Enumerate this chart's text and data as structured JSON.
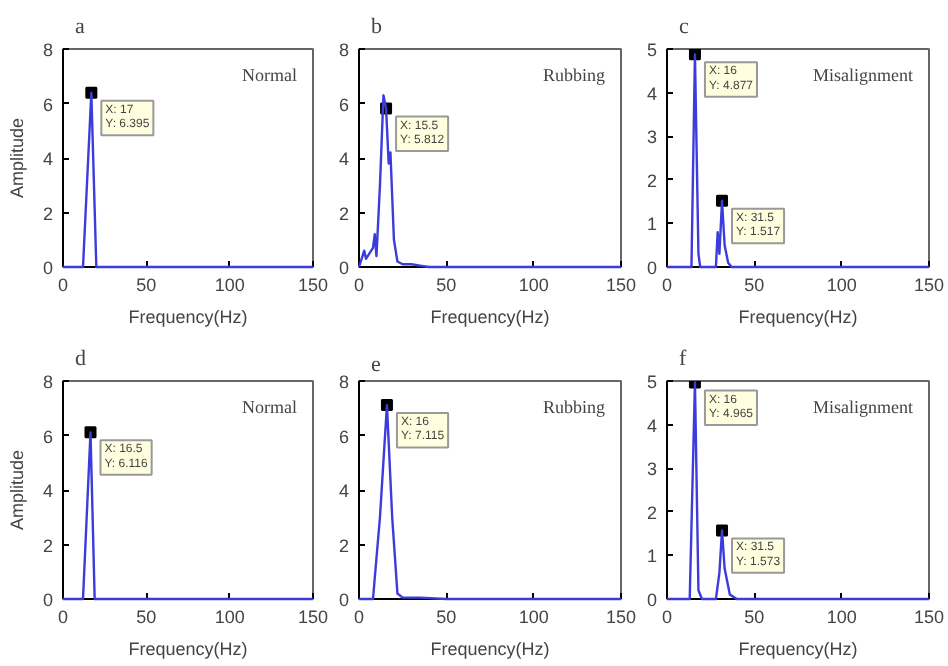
{
  "chart_data": [
    {
      "type": "line",
      "title": "a",
      "xlabel": "Frequency(Hz)",
      "ylabel": "Amplitude",
      "xlim": [
        0,
        150
      ],
      "xticks": [
        0,
        50,
        100,
        150
      ],
      "ylim": [
        0,
        8
      ],
      "yticks": [
        0,
        2,
        4,
        6,
        8
      ],
      "grid": false,
      "series": [
        {
          "color": "#3c3cdc",
          "x": [
            0,
            12,
            17,
            20,
            150
          ],
          "values": [
            0,
            0,
            6.395,
            0,
            0
          ]
        }
      ],
      "annotations": [
        "Normal",
        {
          "text": "X: 17\nY: 6.395",
          "x": 17,
          "y": 6.395
        }
      ]
    },
    {
      "type": "line",
      "title": "b",
      "xlabel": "Frequency(Hz)",
      "xlim": [
        0,
        150
      ],
      "xticks": [
        0,
        50,
        100,
        150
      ],
      "ylim": [
        0,
        8
      ],
      "yticks": [
        0,
        2,
        4,
        6,
        8
      ],
      "grid": false,
      "series": [
        {
          "color": "#3c3cdc",
          "x": [
            0,
            3,
            4,
            6,
            8,
            9,
            10,
            12,
            14,
            15.5,
            17,
            18,
            20,
            22,
            25,
            30,
            35,
            40,
            150
          ],
          "values": [
            0,
            0.6,
            0.3,
            0.5,
            0.7,
            1.2,
            0.4,
            3,
            6.3,
            5.812,
            3.8,
            4.2,
            1,
            0.2,
            0.1,
            0.1,
            0.05,
            0,
            0
          ]
        }
      ],
      "annotations": [
        "Rubbing",
        {
          "text": "X: 15.5\nY: 5.812",
          "x": 15.5,
          "y": 5.812
        }
      ]
    },
    {
      "type": "line",
      "title": "c",
      "xlabel": "Frequency(Hz)",
      "xlim": [
        0,
        150
      ],
      "xticks": [
        0,
        50,
        100,
        150
      ],
      "ylim": [
        0,
        5
      ],
      "yticks": [
        0,
        1,
        2,
        3,
        4,
        5
      ],
      "grid": false,
      "series": [
        {
          "color": "#3c3cdc",
          "x": [
            0,
            14,
            16,
            18,
            19,
            28,
            29,
            30,
            31.5,
            33,
            35,
            37,
            150
          ],
          "values": [
            0,
            0,
            4.877,
            0.3,
            0,
            0,
            0.8,
            0.3,
            1.517,
            0.5,
            0.1,
            0,
            0
          ]
        }
      ],
      "annotations": [
        "Misalignment",
        {
          "text": "X: 16\nY: 4.877",
          "x": 16,
          "y": 4.877
        },
        {
          "text": "X: 31.5\nY: 1.517",
          "x": 31.5,
          "y": 1.517
        }
      ]
    },
    {
      "type": "line",
      "title": "d",
      "xlabel": "Frequency(Hz)",
      "ylabel": "Amplitude",
      "xlim": [
        0,
        150
      ],
      "xticks": [
        0,
        50,
        100,
        150
      ],
      "ylim": [
        0,
        8
      ],
      "yticks": [
        0,
        2,
        4,
        6,
        8
      ],
      "grid": false,
      "series": [
        {
          "color": "#3c3cdc",
          "x": [
            0,
            12,
            16.5,
            19,
            150
          ],
          "values": [
            0,
            0,
            6.116,
            0,
            0
          ]
        }
      ],
      "annotations": [
        "Normal",
        {
          "text": "X: 16.5\nY: 6.116",
          "x": 16.5,
          "y": 6.116
        }
      ]
    },
    {
      "type": "line",
      "title": "e",
      "xlabel": "Frequency(Hz)",
      "xlim": [
        0,
        150
      ],
      "xticks": [
        0,
        50,
        100,
        150
      ],
      "ylim": [
        0,
        8
      ],
      "yticks": [
        0,
        2,
        4,
        6,
        8
      ],
      "grid": false,
      "series": [
        {
          "color": "#3c3cdc",
          "x": [
            0,
            8,
            12,
            16,
            19,
            22,
            25,
            35,
            50,
            150
          ],
          "values": [
            0,
            0,
            3,
            7.115,
            3,
            0.2,
            0.05,
            0.05,
            0,
            0
          ]
        }
      ],
      "annotations": [
        "Rubbing",
        {
          "text": "X: 16\nY: 7.115",
          "x": 16,
          "y": 7.115
        }
      ]
    },
    {
      "type": "line",
      "title": "f",
      "xlabel": "Frequency(Hz)",
      "xlim": [
        0,
        150
      ],
      "xticks": [
        0,
        50,
        100,
        150
      ],
      "ylim": [
        0,
        5
      ],
      "yticks": [
        0,
        1,
        2,
        3,
        4,
        5
      ],
      "grid": false,
      "series": [
        {
          "color": "#3c3cdc",
          "x": [
            0,
            13,
            16,
            18,
            20,
            28,
            30,
            31.5,
            33,
            36,
            40,
            150
          ],
          "values": [
            0,
            0,
            4.965,
            0.2,
            0,
            0,
            0.6,
            1.573,
            0.7,
            0.1,
            0,
            0
          ]
        }
      ],
      "annotations": [
        "Misalignment",
        {
          "text": "X: 16\nY: 4.965",
          "x": 16,
          "y": 4.965
        },
        {
          "text": "X: 31.5\nY: 1.573",
          "x": 31.5,
          "y": 1.573
        }
      ]
    }
  ]
}
